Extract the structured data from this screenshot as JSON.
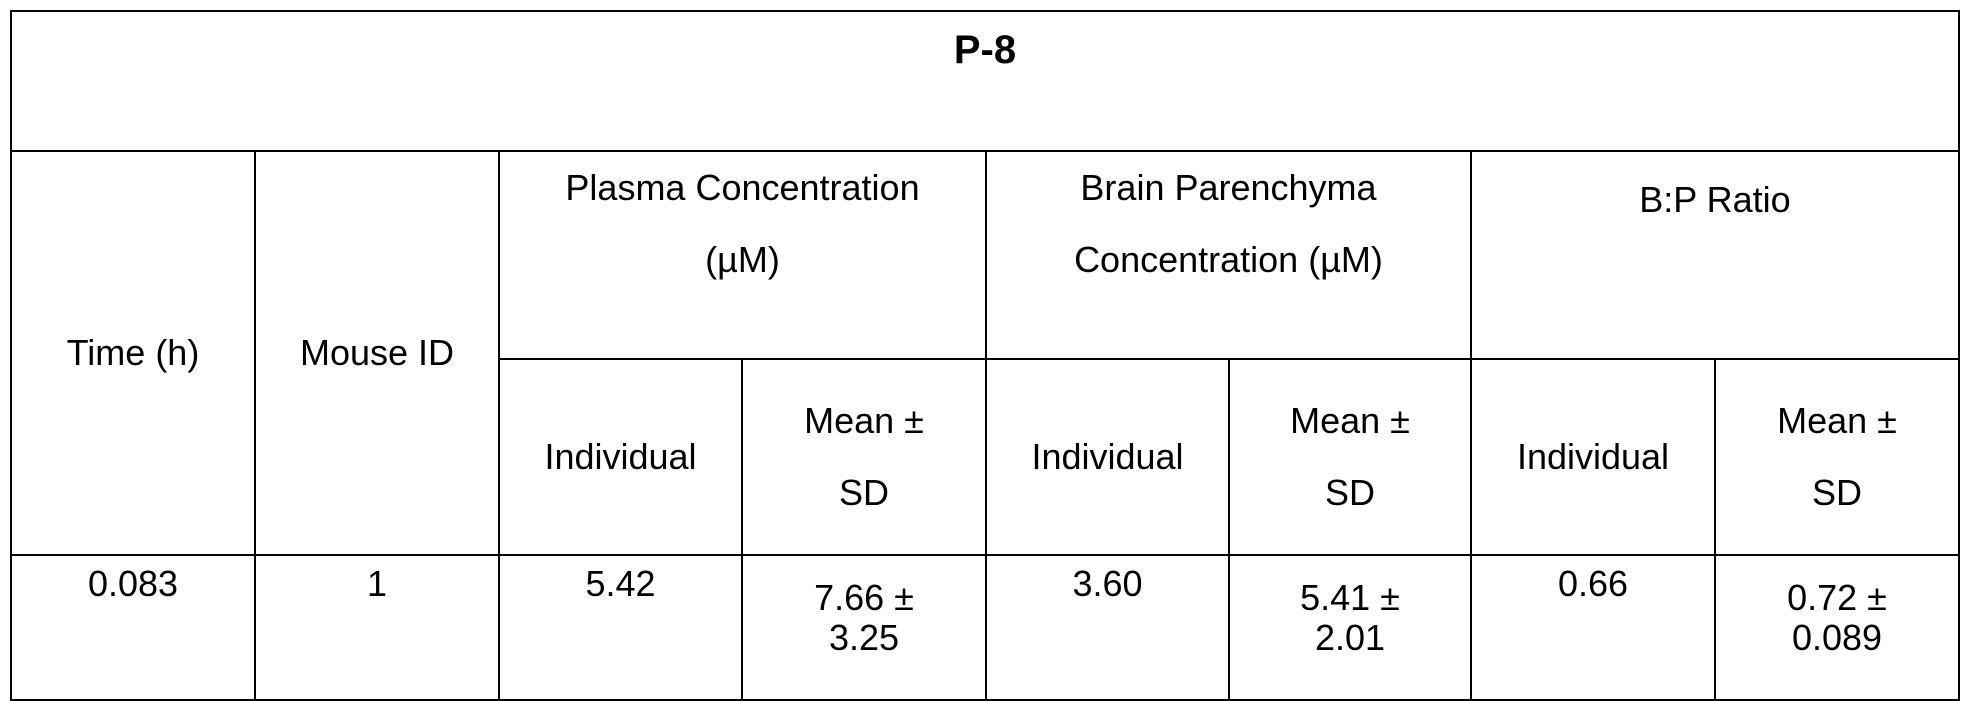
{
  "table": {
    "title": "P-8",
    "headers": [
      "Time (h)",
      "Mouse ID",
      "Plasma Concentration (µM)",
      "Brain Parenchyma Concentration (µM)",
      "B:P Ratio"
    ],
    "subheaders": [
      "Individual",
      "Mean ± SD",
      "Individual",
      "Mean ± SD",
      "Individual",
      "Mean ± SD"
    ],
    "rows": [
      [
        "0.083",
        "1",
        "5.42",
        "7.66 ± 3.25",
        "3.60",
        "5.41 ± 2.01",
        "0.66",
        "0.72 ± 0.089"
      ]
    ]
  }
}
